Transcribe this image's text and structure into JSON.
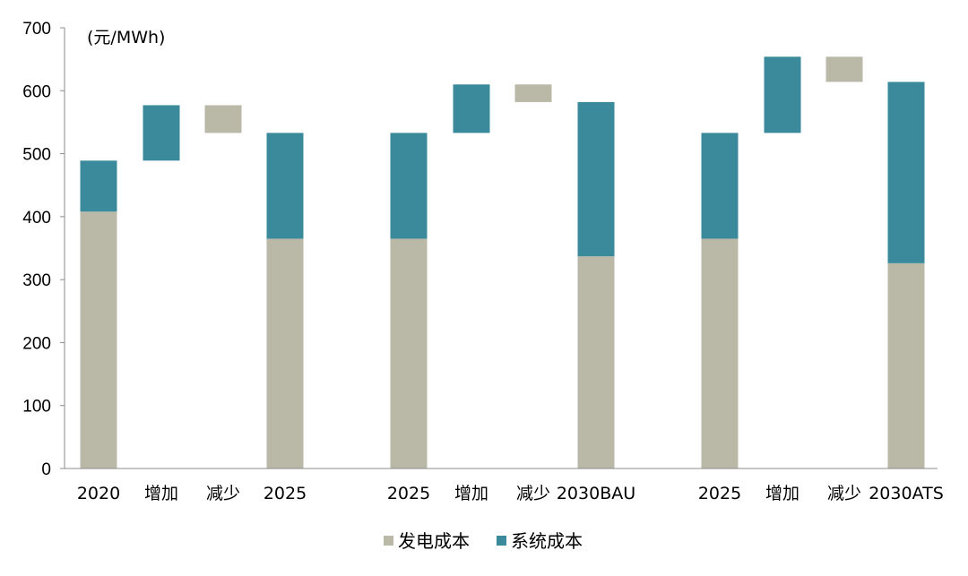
{
  "chart_data": {
    "type": "bar",
    "stacked": true,
    "waterfall": true,
    "unit_label": "(元/MWh)",
    "ylim": [
      0,
      700
    ],
    "yticks": [
      0,
      100,
      200,
      300,
      400,
      500,
      600,
      700
    ],
    "categories": [
      "2020",
      "增加",
      "减少",
      "2025",
      "2025",
      "增加",
      "减少",
      "2030BAU",
      "2025",
      "增加",
      "减少",
      "2030ATS"
    ],
    "groups": [
      [
        0,
        1,
        2,
        3
      ],
      [
        4,
        5,
        6,
        7
      ],
      [
        8,
        9,
        10,
        11
      ]
    ],
    "series": [
      {
        "name": "发电成本",
        "color": "#bab9a8",
        "segments": [
          [
            0,
            408
          ],
          null,
          [
            533,
            577
          ],
          [
            0,
            365
          ],
          [
            0,
            365
          ],
          null,
          [
            582,
            610
          ],
          [
            0,
            337
          ],
          [
            0,
            365
          ],
          null,
          [
            614,
            654
          ],
          [
            0,
            326
          ]
        ]
      },
      {
        "name": "系统成本",
        "color": "#3a8a9c",
        "segments": [
          [
            408,
            489
          ],
          [
            489,
            577
          ],
          null,
          [
            365,
            533
          ],
          [
            365,
            533
          ],
          [
            533,
            610
          ],
          null,
          [
            337,
            582
          ],
          [
            365,
            533
          ],
          [
            533,
            654
          ],
          null,
          [
            326,
            614
          ]
        ]
      }
    ],
    "legend_position": "bottom",
    "grid": false
  }
}
